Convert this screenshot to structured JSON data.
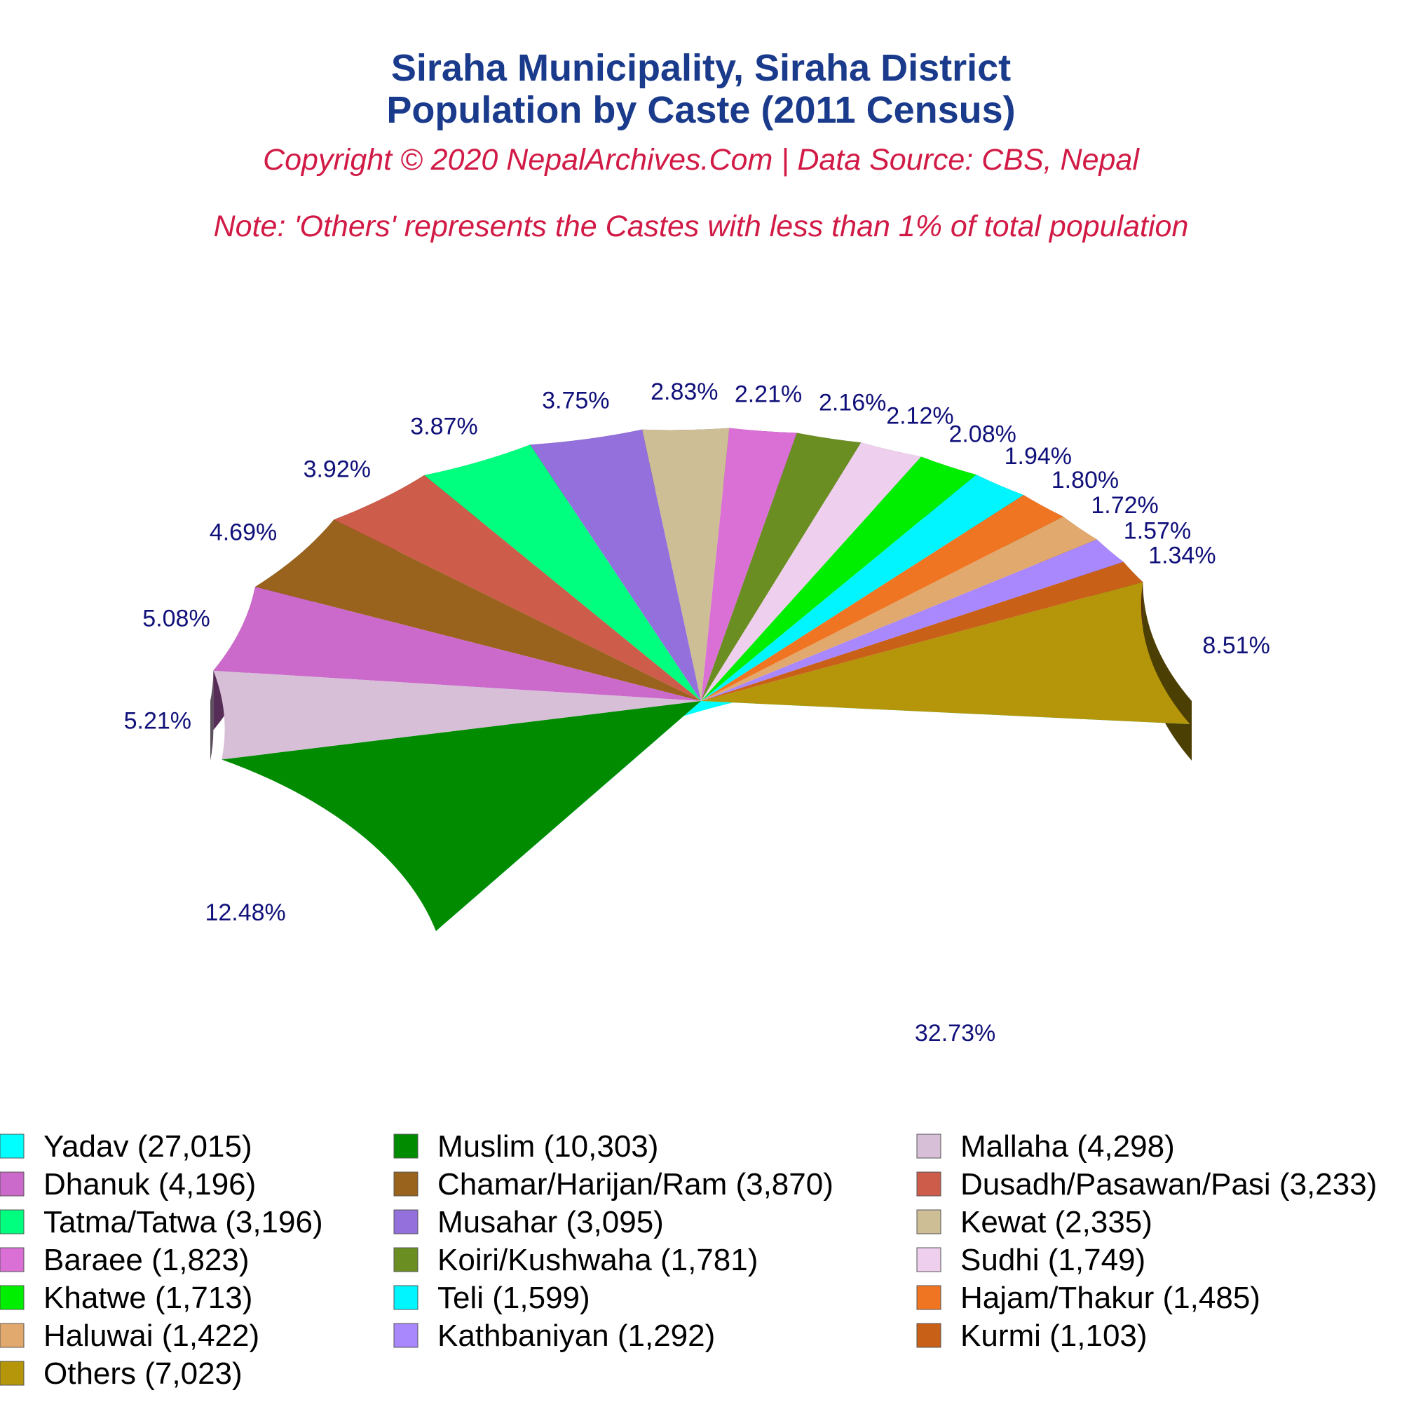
{
  "chart_data": {
    "type": "pie",
    "title_line1": "Siraha Municipality, Siraha District",
    "title_line2": "Population by Caste (2011 Census)",
    "copyright": "Copyright © 2020 NepalArchives.Com | Data Source: CBS, Nepal",
    "note": "Note: 'Others' represents the Castes with less than 1% of total population",
    "slices": [
      {
        "name": "Yadav",
        "value": 27015,
        "percent": "32.73%",
        "color": "#00ffff",
        "legend": "Yadav (27,015)"
      },
      {
        "name": "Others",
        "value": 7023,
        "percent": "8.51%",
        "color": "#b5950a",
        "legend": "Others (7,023)"
      },
      {
        "name": "Kurmi",
        "value": 1103,
        "percent": "1.34%",
        "color": "#c86018",
        "legend": "Kurmi (1,103)"
      },
      {
        "name": "Kathbaniyan",
        "value": 1292,
        "percent": "1.57%",
        "color": "#a987fc",
        "legend": "Kathbaniyan (1,292)"
      },
      {
        "name": "Haluwai",
        "value": 1422,
        "percent": "1.72%",
        "color": "#e2a96e",
        "legend": "Haluwai (1,422)"
      },
      {
        "name": "Hajam/Thakur",
        "value": 1485,
        "percent": "1.80%",
        "color": "#f07522",
        "legend": "Hajam/Thakur (1,485)"
      },
      {
        "name": "Teli",
        "value": 1599,
        "percent": "1.94%",
        "color": "#00f5ff",
        "legend": "Teli (1,599)"
      },
      {
        "name": "Khatwe",
        "value": 1713,
        "percent": "2.08%",
        "color": "#00ee00",
        "legend": "Khatwe (1,713)"
      },
      {
        "name": "Sudhi",
        "value": 1749,
        "percent": "2.12%",
        "color": "#eed0ee",
        "legend": "Sudhi (1,749)"
      },
      {
        "name": "Koiri/Kushwaha",
        "value": 1781,
        "percent": "2.16%",
        "color": "#6b8e23",
        "legend": "Koiri/Kushwaha (1,781)"
      },
      {
        "name": "Baraee",
        "value": 1823,
        "percent": "2.21%",
        "color": "#da70d6",
        "legend": "Baraee (1,823)"
      },
      {
        "name": "Kewat",
        "value": 2335,
        "percent": "2.83%",
        "color": "#cdbe96",
        "legend": "Kewat (2,335)"
      },
      {
        "name": "Musahar",
        "value": 3095,
        "percent": "3.75%",
        "color": "#9370db",
        "legend": "Musahar (3,095)"
      },
      {
        "name": "Tatma/Tatwa",
        "value": 3196,
        "percent": "3.87%",
        "color": "#00ff7f",
        "legend": "Tatma/Tatwa (3,196)"
      },
      {
        "name": "Dusadh/Pasawan/Pasi",
        "value": 3233,
        "percent": "3.92%",
        "color": "#cd5c4a",
        "legend": "Dusadh/Pasawan/Pasi (3,233)"
      },
      {
        "name": "Chamar/Harijan/Ram",
        "value": 3870,
        "percent": "4.69%",
        "color": "#99621d",
        "legend": "Chamar/Harijan/Ram (3,870)"
      },
      {
        "name": "Dhanuk",
        "value": 4196,
        "percent": "5.08%",
        "color": "#cc6acc",
        "legend": "Dhanuk (4,196)"
      },
      {
        "name": "Mallaha",
        "value": 4298,
        "percent": "5.21%",
        "color": "#d8bfd8",
        "legend": "Mallaha (4,298)"
      },
      {
        "name": "Muslim",
        "value": 10303,
        "percent": "12.48%",
        "color": "#008b00",
        "legend": "Muslim (10,303)"
      }
    ],
    "legend_order": [
      "Yadav",
      "Muslim",
      "Mallaha",
      "Dhanuk",
      "Chamar/Harijan/Ram",
      "Dusadh/Pasawan/Pasi",
      "Tatma/Tatwa",
      "Musahar",
      "Kewat",
      "Baraee",
      "Koiri/Kushwaha",
      "Sudhi",
      "Khatwe",
      "Teli",
      "Hajam/Thakur",
      "Haluwai",
      "Kathbaniyan",
      "Kurmi",
      "Others"
    ],
    "legend_placement": "bottom"
  }
}
